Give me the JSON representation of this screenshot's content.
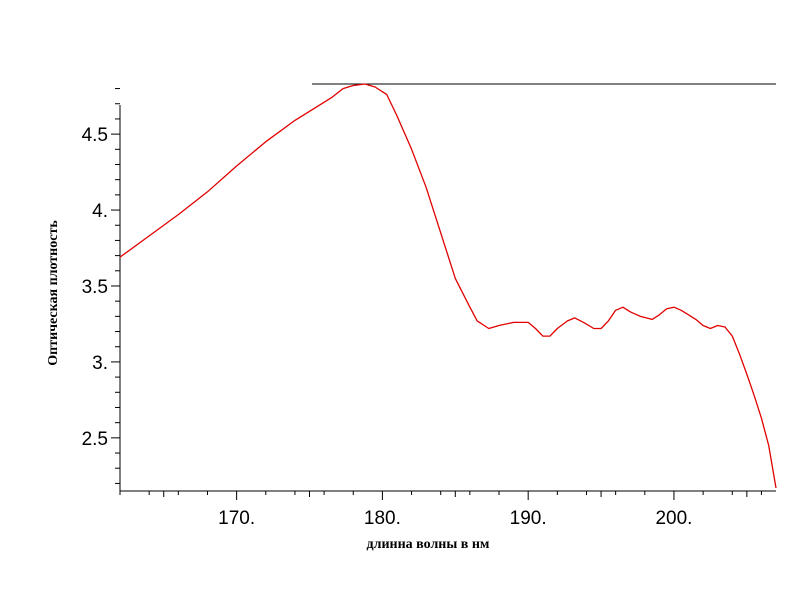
{
  "chart_data": {
    "type": "line",
    "title": "",
    "xlabel": "длинна волны в нм",
    "ylabel": "Оптическая плотность",
    "xlim": [
      162,
      207
    ],
    "ylim": [
      2.15,
      4.83
    ],
    "x_ticks": [
      {
        "value": 170,
        "label": "170."
      },
      {
        "value": 180,
        "label": "180."
      },
      {
        "value": 190,
        "label": "190."
      },
      {
        "value": 200,
        "label": "200."
      }
    ],
    "y_ticks": [
      {
        "value": 2.5,
        "label": "2.5"
      },
      {
        "value": 3.0,
        "label": "3."
      },
      {
        "value": 3.5,
        "label": "3.5"
      },
      {
        "value": 4.0,
        "label": "4."
      },
      {
        "value": 4.5,
        "label": "4.5"
      }
    ],
    "grid": false,
    "line_color": "#e00000",
    "series": [
      {
        "x": [
          162.0,
          164.0,
          166.0,
          168.0,
          170.0,
          172.0,
          174.0,
          175.5,
          176.5,
          177.3,
          178.0,
          178.8,
          179.5,
          180.3,
          181.0,
          182.0,
          183.0,
          184.0,
          185.0,
          186.0,
          186.5,
          187.3,
          188.0,
          189.0,
          190.0,
          190.5,
          191.0,
          191.5,
          192.0,
          192.7,
          193.2,
          193.8,
          194.5,
          195.0,
          195.5,
          196.0,
          196.5,
          197.0,
          197.7,
          198.5,
          199.0,
          199.5,
          200.0,
          200.5,
          201.0,
          201.5,
          202.0,
          202.5,
          203.0,
          203.5,
          204.0,
          204.5,
          205.0,
          205.5,
          206.0,
          206.5,
          207.0
        ],
        "y": [
          3.69,
          3.83,
          3.97,
          4.12,
          4.29,
          4.45,
          4.59,
          4.68,
          4.74,
          4.8,
          4.82,
          4.83,
          4.81,
          4.76,
          4.62,
          4.4,
          4.15,
          3.85,
          3.55,
          3.36,
          3.27,
          3.22,
          3.24,
          3.26,
          3.26,
          3.22,
          3.17,
          3.17,
          3.22,
          3.27,
          3.29,
          3.26,
          3.22,
          3.22,
          3.27,
          3.34,
          3.36,
          3.33,
          3.3,
          3.28,
          3.31,
          3.35,
          3.36,
          3.34,
          3.31,
          3.28,
          3.24,
          3.22,
          3.24,
          3.23,
          3.17,
          3.05,
          2.92,
          2.78,
          2.63,
          2.45,
          2.17
        ]
      }
    ]
  }
}
